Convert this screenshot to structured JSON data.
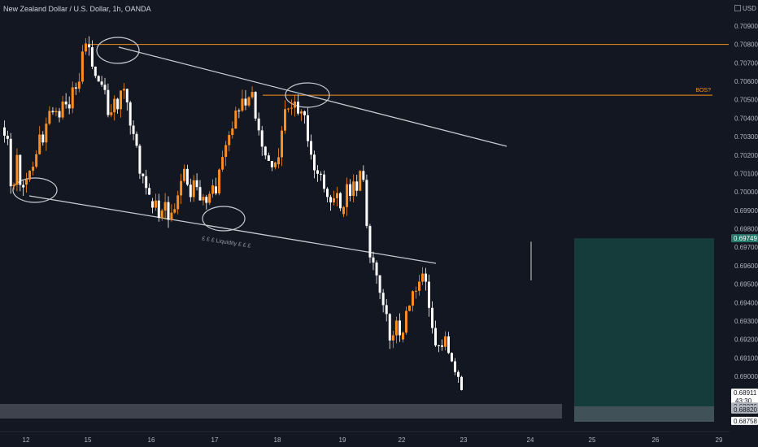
{
  "header": {
    "symbol_title": "New Zealand Dollar / U.S. Dollar, 1h, OANDA",
    "currency": "USD"
  },
  "chart_data": {
    "type": "candlestick",
    "title": "New Zealand Dollar / U.S. Dollar, 1h, OANDA",
    "y_axis": {
      "side": "right",
      "ylim": [
        0.6875,
        0.71
      ],
      "ticks": [
        "0.70900",
        "0.70800",
        "0.70700",
        "0.70600",
        "0.70500",
        "0.70400",
        "0.70300",
        "0.70200",
        "0.70100",
        "0.70000",
        "0.69900",
        "0.69800",
        "0.69700",
        "0.69600",
        "0.69500",
        "0.69400",
        "0.69300",
        "0.69200",
        "0.69100",
        "0.69000"
      ]
    },
    "x_axis": {
      "ticks": [
        "12",
        "15",
        "16",
        "17",
        "18",
        "19",
        "22",
        "23",
        "24",
        "25",
        "26",
        "29"
      ]
    },
    "grid": false,
    "price_labels": [
      {
        "value": "0.69749",
        "price": 0.69749,
        "color": "#26786b"
      },
      {
        "value": "0.68911",
        "price": 0.68911,
        "color": "#ffffff",
        "sub": "43:30"
      },
      {
        "value": "0.68836",
        "price": 0.68836,
        "color": "#b2b5be"
      },
      {
        "value": "0.68820",
        "price": 0.6882,
        "color": "#b2b5be"
      },
      {
        "value": "0.68758",
        "price": 0.68758,
        "color": "#ffffff"
      }
    ],
    "annotations": {
      "bos_label": "BOS?",
      "liquidity_label": "£ £ £ Liquidity £ £ £",
      "resistance_level": 0.708,
      "bos_level": 0.70525
    },
    "colors": {
      "up": "#ff8d1e",
      "down": "#ffffff",
      "horizontal_lines": "#f7931a",
      "trendlines": "#c8cad1",
      "target_box": "#163b3b",
      "zone": "#5d606b"
    },
    "path": [
      [
        0.7035,
        0.7022,
        0.7028,
        0.7005,
        0.701,
        0.7003,
        0.7018,
        0.7008,
        0.6999,
        0.7004
      ],
      [
        0.7004,
        0.7018,
        0.701,
        0.703,
        0.7025,
        0.7042,
        0.7038,
        0.7045,
        0.7041,
        0.705,
        0.7047,
        0.706,
        0.7055,
        0.707,
        0.708
      ],
      [
        0.708,
        0.7065,
        0.7055,
        0.7062,
        0.7048,
        0.7042,
        0.7055,
        0.7045,
        0.706,
        0.7045,
        0.7035,
        0.7025,
        0.701,
        0.7,
        0.6995
      ],
      [
        0.6995,
        0.699,
        0.6988,
        0.6992,
        0.6985,
        0.6988,
        0.7,
        0.7012,
        0.6998,
        0.7005,
        0.6995,
        0.7,
        0.6992,
        0.7003
      ],
      [
        0.7003,
        0.7015,
        0.7025,
        0.7035,
        0.705,
        0.7046,
        0.7052,
        0.704,
        0.7025,
        0.702,
        0.7015
      ],
      [
        0.7015,
        0.7035,
        0.7048,
        0.7042,
        0.7045,
        0.7038,
        0.7046,
        0.703,
        0.702,
        0.7008,
        0.7012,
        0.7,
        0.6995,
        0.6992,
        0.6998,
        0.6988
      ],
      [
        0.6988,
        0.701,
        0.7,
        0.7008,
        0.7004,
        0.7012,
        0.6998,
        0.6975,
        0.696,
        0.6955,
        0.695,
        0.6945,
        0.6935,
        0.6925,
        0.6918,
        0.693,
        0.692
      ],
      [
        0.692,
        0.694,
        0.6945,
        0.6955,
        0.695,
        0.694,
        0.692,
        0.691,
        0.6918,
        0.6912,
        0.6905,
        0.6892
      ]
    ]
  }
}
